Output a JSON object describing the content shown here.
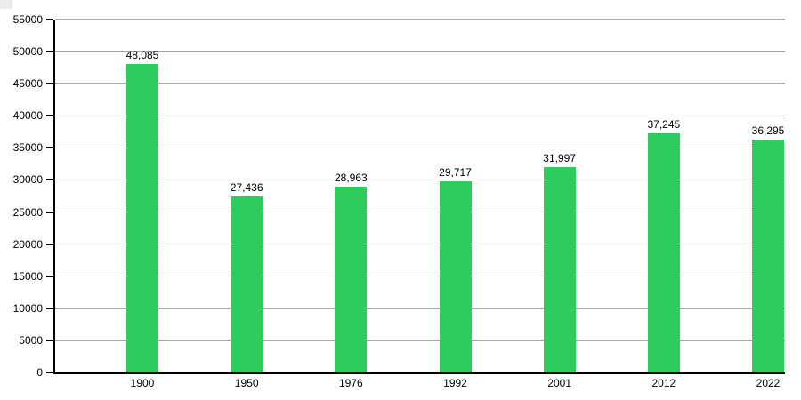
{
  "chart_data": {
    "type": "bar",
    "title": "",
    "xlabel": "",
    "ylabel": "",
    "categories": [
      "1900",
      "1950",
      "1976",
      "1992",
      "2001",
      "2012",
      "2022"
    ],
    "values": [
      48085,
      27436,
      28963,
      29717,
      31997,
      37245,
      36295
    ],
    "value_labels": [
      "48,085",
      "27,436",
      "28,963",
      "29,717",
      "31,997",
      "37,245",
      "36,295"
    ],
    "ylim": [
      0,
      55000
    ],
    "ytick_step": 5000,
    "ytick_labels": [
      "0",
      "5000",
      "10000",
      "15000",
      "20000",
      "25000",
      "30000",
      "35000",
      "40000",
      "45000",
      "50000",
      "55000"
    ],
    "grid": true,
    "legend": false,
    "bar_color": "#2ecc5e",
    "axis_color": "#000000",
    "gridline_color": "#a9a9a9",
    "background_color": "#ffffff"
  }
}
